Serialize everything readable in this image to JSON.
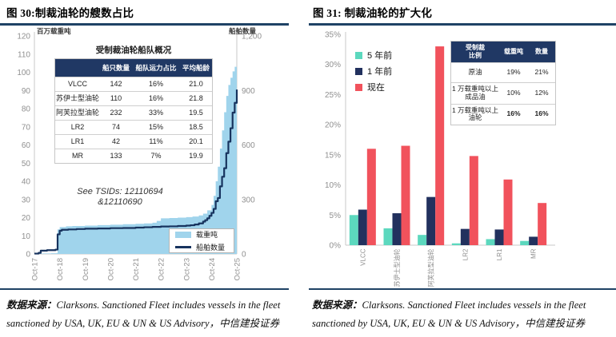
{
  "figures": [
    {
      "title": "图 30:制裁油轮的艘数占比",
      "source_label": "数据来源：",
      "source_text": "Clarksons. Sanctioned Fleet includes vessels in the fleet sanctioned by USA, UK, EU & UN & US Advisory，中信建投证券"
    },
    {
      "title": "图 31: 制裁油轮的扩大化",
      "source_label": "数据来源：",
      "source_text": "Clarksons. Sanctioned Fleet includes vessels in the fleet sanctioned by USA, UK, EU & UN & US Advisory，中信建投证券"
    }
  ],
  "colors": {
    "rule_navy": "#1F4265",
    "table_header_navy": "#203864",
    "area_blue": "#A0D4EC",
    "line_navy": "#17335E",
    "bar_teal": "#5CD8BE",
    "bar_navy": "#22315E",
    "bar_red": "#F1525C",
    "tick_gray": "#8f8f8f",
    "axis_gray": "#c9c9c9"
  },
  "chart_data": [
    {
      "type": "area+line",
      "title": "图 30:制裁油轮的艘数占比",
      "x_ticks": [
        "Oct-17",
        "Oct-18",
        "Oct-19",
        "Oct-20",
        "Oct-21",
        "Oct-22",
        "Oct-23",
        "Oct-24",
        "Oct-25"
      ],
      "x_range_months": 96,
      "left_axis": {
        "label": "百万载重吨",
        "range": [
          0,
          120
        ],
        "tick_step": 10
      },
      "right_axis": {
        "label": "船舶数量",
        "range": [
          0,
          1200
        ],
        "ticks": [
          "0",
          "300",
          "600",
          "900",
          "1,200"
        ]
      },
      "annotation": {
        "lines": [
          "See TSIDs: 12110694",
          "&12110690"
        ]
      },
      "legend": [
        {
          "label": "载重吨",
          "style": "area",
          "color": "#A0D4EC"
        },
        {
          "label": "船舶数量",
          "style": "line",
          "color": "#17335E"
        }
      ],
      "series": [
        {
          "name": "载重吨",
          "axis": "left",
          "style": "area",
          "color": "#A0D4EC",
          "points": [
            [
              0,
              0.2
            ],
            [
              4,
              0.3
            ],
            [
              8,
              0.4
            ],
            [
              10.8,
              0.5
            ],
            [
              11,
              13.5
            ],
            [
              12,
              14.8
            ],
            [
              15,
              15.2
            ],
            [
              18,
              15.4
            ],
            [
              24,
              15.6
            ],
            [
              30,
              15.9
            ],
            [
              36,
              16.1
            ],
            [
              42,
              16.4
            ],
            [
              48,
              16.6
            ],
            [
              52,
              16.8
            ],
            [
              56,
              17.2
            ],
            [
              58,
              18.2
            ],
            [
              60,
              19.6
            ],
            [
              64,
              19.8
            ],
            [
              68,
              20
            ],
            [
              72,
              20.3
            ],
            [
              75,
              20.6
            ],
            [
              78,
              21.2
            ],
            [
              80,
              22.2
            ],
            [
              82,
              24
            ],
            [
              84,
              27
            ],
            [
              85,
              32
            ],
            [
              86,
              40
            ],
            [
              87,
              48
            ],
            [
              88,
              58
            ],
            [
              89,
              68
            ],
            [
              90,
              78
            ],
            [
              91,
              87
            ],
            [
              92,
              93
            ],
            [
              93,
              97
            ],
            [
              94,
              100.5
            ],
            [
              95,
              103
            ],
            [
              96,
              105
            ]
          ]
        },
        {
          "name": "船舶数量",
          "axis": "right",
          "style": "line",
          "color": "#17335E",
          "points": [
            [
              0,
              2
            ],
            [
              2,
              6
            ],
            [
              3,
              18
            ],
            [
              6,
              21
            ],
            [
              10,
              24
            ],
            [
              11,
              108
            ],
            [
              12,
              128
            ],
            [
              13,
              133
            ],
            [
              16,
              135
            ],
            [
              20,
              137
            ],
            [
              24,
              139
            ],
            [
              30,
              140
            ],
            [
              36,
              142
            ],
            [
              42,
              143
            ],
            [
              48,
              145
            ],
            [
              52,
              147
            ],
            [
              56,
              149
            ],
            [
              60,
              151
            ],
            [
              64,
              152
            ],
            [
              68,
              154
            ],
            [
              72,
              156
            ],
            [
              74,
              158
            ],
            [
              76,
              162
            ],
            [
              78,
              168
            ],
            [
              80,
              178
            ],
            [
              81,
              186
            ],
            [
              82,
              196
            ],
            [
              83,
              210
            ],
            [
              84,
              226
            ],
            [
              85,
              248
            ],
            [
              86,
              290
            ],
            [
              87,
              308
            ],
            [
              88,
              372
            ],
            [
              89,
              425
            ],
            [
              90,
              472
            ],
            [
              91,
              555
            ],
            [
              92,
              618
            ],
            [
              93,
              692
            ],
            [
              94,
              778
            ],
            [
              95,
              832
            ],
            [
              96,
              905
            ]
          ]
        }
      ],
      "table": {
        "title": "受制裁油轮船队概况",
        "headers": [
          "",
          "船只数量",
          "船队运力占比",
          "平均船龄"
        ],
        "rows": [
          {
            "cells": [
              "VLCC",
              "142",
              "16%",
              "21.0"
            ],
            "bold": false
          },
          {
            "cells": [
              "苏伊士型油轮",
              "110",
              "16%",
              "21.8"
            ],
            "bold": false
          },
          {
            "cells": [
              "阿芙拉型油轮",
              "232",
              "33%",
              "19.5"
            ],
            "bold": false
          },
          {
            "cells": [
              "LR2",
              "74",
              "15%",
              "18.5"
            ],
            "bold": false
          },
          {
            "cells": [
              "LR1",
              "42",
              "11%",
              "20.1"
            ],
            "bold": false
          },
          {
            "cells": [
              "MR",
              "133",
              "7%",
              "19.9"
            ],
            "bold": false
          }
        ]
      }
    },
    {
      "type": "bar",
      "title": "图 31: 制裁油轮的扩大化",
      "categories": [
        "VLCC",
        "苏伊士型油轮",
        "阿芙拉型油轮",
        "LR2",
        "LR1",
        "MR"
      ],
      "y_axis": {
        "range": [
          0,
          35
        ],
        "tick_step": 5,
        "tick_suffix": "%"
      },
      "legend_position": "top-left",
      "series": [
        {
          "name": "5 年前",
          "color": "#5CD8BE",
          "values": [
            5.0,
            2.8,
            1.7,
            0.3,
            1.0,
            0.7
          ]
        },
        {
          "name": "1 年前",
          "color": "#22315E",
          "values": [
            5.9,
            5.3,
            8.0,
            2.7,
            2.6,
            1.4
          ]
        },
        {
          "name": "现在",
          "color": "#F1525C",
          "values": [
            16.0,
            16.5,
            33.0,
            14.8,
            10.9,
            7.0
          ]
        }
      ],
      "table": {
        "title": "",
        "headers": [
          "受制裁\n比例",
          "载重吨",
          "数量"
        ],
        "rows": [
          {
            "cells": [
              "原油",
              "19%",
              "21%"
            ],
            "bold": false
          },
          {
            "cells": [
              "1 万载重吨以上\n成品油",
              "10%",
              "12%"
            ],
            "bold": false
          },
          {
            "cells": [
              "1 万载重吨以上\n油轮",
              "16%",
              "16%"
            ],
            "bold": true
          }
        ]
      }
    }
  ]
}
